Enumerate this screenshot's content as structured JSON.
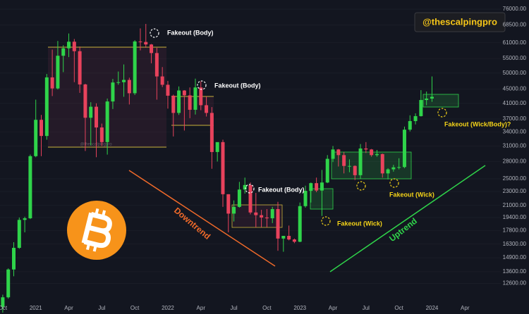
{
  "chart_data": {
    "type": "candlestick",
    "handle": "@thescalpingpro",
    "watermark": "@thescalpingpro",
    "annotations": [
      "Fakeout (Body)",
      "Fakeout (Body)",
      "Fakeout (Body)",
      "Fakeout (Wick)",
      "Fakeout (Wick)",
      "Fakeout (Wick/Body)?",
      "Downtrend",
      "Uptrend"
    ],
    "up_color": "#2fd44a",
    "down_color": "#e8425c",
    "log_scale": true,
    "categories": [
      "Oct",
      null,
      null,
      null,
      null,
      null,
      "2021",
      null,
      null,
      null,
      null,
      null,
      "Apr",
      null,
      null,
      null,
      null,
      null,
      "Jul",
      null,
      null,
      null,
      null,
      null,
      "Oct",
      null,
      null,
      null,
      null,
      null,
      "2022",
      null,
      null,
      null,
      null,
      null,
      "Apr",
      null,
      null,
      null,
      null,
      null,
      "Jul",
      null,
      null,
      null,
      null,
      null,
      "Oct",
      null,
      null,
      null,
      null,
      null,
      "2023",
      null,
      null,
      null,
      null,
      null,
      "Apr",
      null,
      null,
      null,
      null,
      null,
      "Jul",
      null,
      null,
      null,
      null,
      null,
      "Oct",
      null,
      null,
      null,
      null,
      null,
      "2024",
      null,
      null,
      null,
      null,
      null,
      "Apr",
      null,
      null,
      null,
      null,
      null,
      null
    ],
    "open": [
      10800,
      11500,
      13800,
      15900,
      19100,
      19300,
      29000,
      36800,
      33100,
      48600,
      45200,
      56000,
      58800,
      61400,
      57700,
      46400,
      37300,
      40100,
      35000,
      31800,
      41500,
      47000,
      47100,
      47800,
      43800,
      61500,
      61300,
      60300,
      57000,
      48900,
      46300,
      43100,
      38500,
      44600,
      43200,
      39300,
      45500,
      40500,
      38500,
      29800,
      31800,
      22600,
      19900,
      20800,
      23300,
      24000,
      20050,
      19700,
      19400,
      19300,
      20500,
      16900,
      17200,
      16800,
      16550,
      20900,
      23100,
      24300,
      23150,
      24400,
      28500,
      30300,
      29200,
      27200,
      27200,
      25600,
      30500,
      30300,
      29200,
      29400,
      25900,
      26600,
      26950,
      27000,
      34500,
      36500,
      37700,
      41900,
      42300,
      null,
      null,
      null,
      null,
      null,
      null,
      null,
      null,
      null,
      null,
      null,
      null
    ],
    "high": [
      11700,
      13900,
      16500,
      19400,
      19500,
      29300,
      42000,
      38000,
      49700,
      58300,
      61700,
      60000,
      64800,
      62500,
      59500,
      46600,
      41300,
      41000,
      35900,
      42300,
      48100,
      50500,
      52900,
      48500,
      62000,
      67000,
      69000,
      60500,
      59000,
      52000,
      47500,
      43400,
      45800,
      44700,
      45500,
      48200,
      47400,
      42900,
      40000,
      31300,
      32300,
      22600,
      21700,
      24500,
      25200,
      24400,
      22800,
      20400,
      20500,
      20800,
      21500,
      17200,
      18400,
      16900,
      21400,
      23900,
      24400,
      25200,
      26500,
      29200,
      31000,
      30400,
      29800,
      28400,
      27300,
      31400,
      31800,
      30400,
      30200,
      29500,
      26800,
      27400,
      28600,
      35200,
      37900,
      38400,
      44700,
      44300,
      48900,
      null,
      null,
      null,
      null,
      null,
      null,
      null,
      null,
      null,
      null,
      null,
      null
    ],
    "low": [
      10400,
      11400,
      13200,
      15800,
      17600,
      19200,
      28800,
      29000,
      32300,
      43000,
      44900,
      50300,
      55500,
      47100,
      43900,
      30000,
      31100,
      28800,
      31000,
      29300,
      39500,
      46300,
      42800,
      40700,
      43300,
      58000,
      59000,
      53300,
      42000,
      45600,
      39600,
      33000,
      38000,
      34300,
      37200,
      38100,
      39200,
      37600,
      26700,
      28000,
      20800,
      17600,
      18900,
      20700,
      22700,
      19800,
      18200,
      18200,
      18200,
      18700,
      15600,
      15500,
      16700,
      16400,
      16500,
      20700,
      21400,
      22900,
      19600,
      24300,
      27900,
      27100,
      25900,
      26100,
      24800,
      25000,
      29600,
      28900,
      28900,
      25200,
      24900,
      26200,
      26600,
      26800,
      34100,
      35700,
      37600,
      40500,
      41400,
      null,
      null,
      null,
      null,
      null,
      null,
      null,
      null,
      null,
      null,
      null,
      null
    ],
    "close": [
      11500,
      13800,
      15900,
      19100,
      19300,
      29000,
      36800,
      33100,
      48600,
      45200,
      56000,
      58800,
      61400,
      57700,
      46400,
      37300,
      40100,
      35000,
      31800,
      41500,
      47000,
      47100,
      47800,
      43800,
      61500,
      61300,
      60300,
      57000,
      48900,
      46300,
      43100,
      38500,
      44600,
      43200,
      39300,
      45500,
      40500,
      38500,
      29800,
      31800,
      22600,
      19900,
      20800,
      23300,
      24000,
      20050,
      19700,
      19400,
      19300,
      20500,
      16900,
      17200,
      16800,
      16550,
      20900,
      23100,
      24300,
      23150,
      24400,
      28500,
      30300,
      29200,
      27200,
      27200,
      25600,
      30500,
      30300,
      29200,
      29400,
      25900,
      26600,
      26950,
      27000,
      34500,
      36500,
      37700,
      41900,
      42300,
      42800,
      null,
      null,
      null,
      null,
      null,
      null,
      null,
      null,
      null,
      null,
      null,
      null
    ],
    "ylim": [
      11200,
      80700
    ],
    "yticks": [
      {
        "value": 76000,
        "label": "76000.00"
      },
      {
        "value": 68500,
        "label": "68500.00"
      },
      {
        "value": 61000,
        "label": "61000.00"
      },
      {
        "value": 55000,
        "label": "55000.00"
      },
      {
        "value": 50000,
        "label": "50000.00"
      },
      {
        "value": 45000,
        "label": "45000.00"
      },
      {
        "value": 41000,
        "label": "41000.00"
      },
      {
        "value": 37000,
        "label": "37000.00"
      },
      {
        "value": 34000,
        "label": "34000.00"
      },
      {
        "value": 31000,
        "label": "31000.00"
      },
      {
        "value": 28000,
        "label": "28000.00"
      },
      {
        "value": 25000,
        "label": "25000.00"
      },
      {
        "value": 23000,
        "label": "23000.00"
      },
      {
        "value": 21000,
        "label": "21000.00"
      },
      {
        "value": 19400,
        "label": "19400.00"
      },
      {
        "value": 17800,
        "label": "17800.00"
      },
      {
        "value": 16300,
        "label": "16300.00"
      },
      {
        "value": 14900,
        "label": "14900.00"
      },
      {
        "value": 13600,
        "label": "13600.00"
      },
      {
        "value": 12600,
        "label": "12600.00"
      }
    ]
  }
}
